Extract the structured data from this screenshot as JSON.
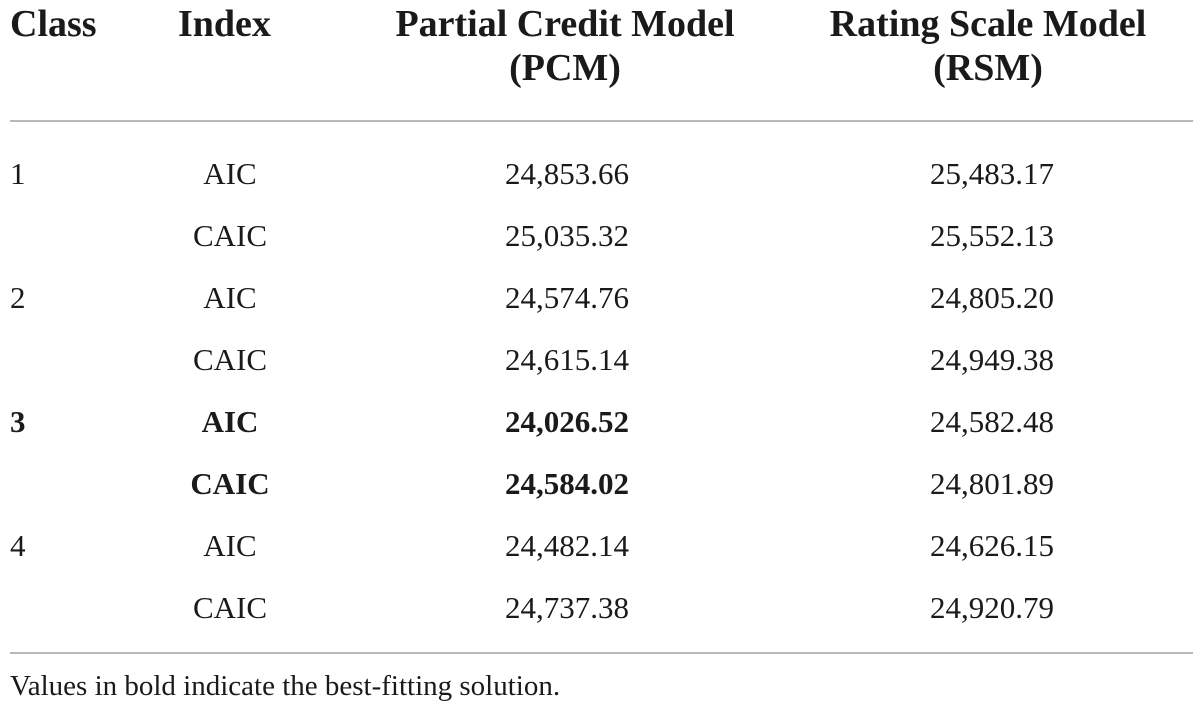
{
  "table": {
    "headers": {
      "class": "Class",
      "index": "Index",
      "pcm_line1": "Partial Credit Model",
      "pcm_line2": "(PCM)",
      "rsm_line1": "Rating Scale Model",
      "rsm_line2": "(RSM)"
    },
    "rows": [
      {
        "class": "1",
        "index": "AIC",
        "pcm": "24,853.66",
        "rsm": "25,483.17",
        "bold": false
      },
      {
        "class": "",
        "index": "CAIC",
        "pcm": "25,035.32",
        "rsm": "25,552.13",
        "bold": false
      },
      {
        "class": "2",
        "index": "AIC",
        "pcm": "24,574.76",
        "rsm": "24,805.20",
        "bold": false
      },
      {
        "class": "",
        "index": "CAIC",
        "pcm": "24,615.14",
        "rsm": "24,949.38",
        "bold": false
      },
      {
        "class": "3",
        "index": "AIC",
        "pcm": "24,026.52",
        "rsm": "24,582.48",
        "bold": true
      },
      {
        "class": "",
        "index": "CAIC",
        "pcm": "24,584.02",
        "rsm": "24,801.89",
        "bold": true
      },
      {
        "class": "4",
        "index": "AIC",
        "pcm": "24,482.14",
        "rsm": "24,626.15",
        "bold": false
      },
      {
        "class": "",
        "index": "CAIC",
        "pcm": "24,737.38",
        "rsm": "24,920.79",
        "bold": false
      }
    ],
    "footnote": "Values in bold indicate the best-fitting solution."
  }
}
